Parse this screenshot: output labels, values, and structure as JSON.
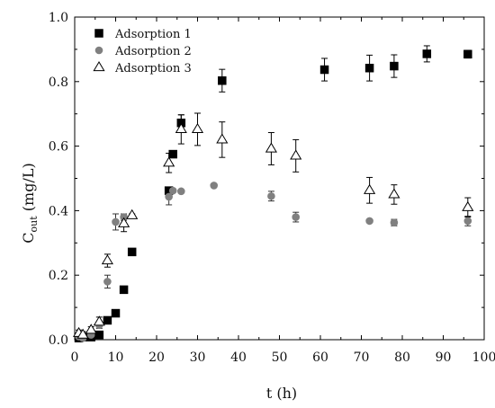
{
  "chart_data": {
    "type": "scatter",
    "xlabel": "t (h)",
    "ylabel_main": "C",
    "ylabel_sub": "out",
    "ylabel_unit": " (mg/L)",
    "xlim": [
      0,
      100
    ],
    "ylim": [
      0,
      1.0
    ],
    "xticks": [
      0,
      10,
      20,
      30,
      40,
      50,
      60,
      70,
      80,
      90,
      100
    ],
    "yticks": [
      0.0,
      0.2,
      0.4,
      0.6,
      0.8,
      1.0
    ],
    "ytick_labels": [
      "0.0",
      "0.2",
      "0.4",
      "0.6",
      "0.8",
      "1.0"
    ],
    "grid": false,
    "legend_position": "top-left",
    "series": [
      {
        "name": "Adsorption 1",
        "marker": "square",
        "color": "#000000",
        "points": [
          {
            "x": 1,
            "y": 0.005,
            "err": 0
          },
          {
            "x": 2,
            "y": 0.008,
            "err": 0
          },
          {
            "x": 4,
            "y": 0.008,
            "err": 0
          },
          {
            "x": 6,
            "y": 0.015,
            "err": 0
          },
          {
            "x": 8,
            "y": 0.06,
            "err": 0
          },
          {
            "x": 10,
            "y": 0.082,
            "err": 0
          },
          {
            "x": 12,
            "y": 0.155,
            "err": 0
          },
          {
            "x": 14,
            "y": 0.272,
            "err": 0
          },
          {
            "x": 23,
            "y": 0.462,
            "err": 0.01
          },
          {
            "x": 24,
            "y": 0.575,
            "err": 0
          },
          {
            "x": 26,
            "y": 0.672,
            "err": 0.025
          },
          {
            "x": 36,
            "y": 0.803,
            "err": 0.035
          },
          {
            "x": 61,
            "y": 0.837,
            "err": 0.035
          },
          {
            "x": 72,
            "y": 0.842,
            "err": 0.04
          },
          {
            "x": 78,
            "y": 0.848,
            "err": 0.035
          },
          {
            "x": 86,
            "y": 0.886,
            "err": 0.025
          },
          {
            "x": 96,
            "y": 0.885,
            "err": 0.012
          }
        ]
      },
      {
        "name": "Adsorption 2",
        "marker": "circle",
        "color": "#808080",
        "points": [
          {
            "x": 1,
            "y": 0.01,
            "err": 0.008
          },
          {
            "x": 2,
            "y": 0.005,
            "err": 0
          },
          {
            "x": 4,
            "y": 0.015,
            "err": 0
          },
          {
            "x": 6,
            "y": 0.045,
            "err": 0.01
          },
          {
            "x": 8,
            "y": 0.18,
            "err": 0.02
          },
          {
            "x": 10,
            "y": 0.365,
            "err": 0.025
          },
          {
            "x": 12,
            "y": 0.38,
            "err": 0.01
          },
          {
            "x": 23,
            "y": 0.443,
            "err": 0.025
          },
          {
            "x": 24,
            "y": 0.462,
            "err": 0.005
          },
          {
            "x": 26,
            "y": 0.46,
            "err": 0.005
          },
          {
            "x": 34,
            "y": 0.478,
            "err": 0.005
          },
          {
            "x": 48,
            "y": 0.445,
            "err": 0.015
          },
          {
            "x": 54,
            "y": 0.38,
            "err": 0.015
          },
          {
            "x": 72,
            "y": 0.368,
            "err": 0.005
          },
          {
            "x": 78,
            "y": 0.363,
            "err": 0.01
          },
          {
            "x": 96,
            "y": 0.368,
            "err": 0.015
          }
        ]
      },
      {
        "name": "Adsorption 3",
        "marker": "triangle",
        "color": "#000000",
        "points": [
          {
            "x": 1,
            "y": 0.02,
            "err": 0.01
          },
          {
            "x": 2,
            "y": 0.015,
            "err": 0.01
          },
          {
            "x": 4,
            "y": 0.03,
            "err": 0.01
          },
          {
            "x": 6,
            "y": 0.055,
            "err": 0.015
          },
          {
            "x": 8,
            "y": 0.245,
            "err": 0.02
          },
          {
            "x": 12,
            "y": 0.36,
            "err": 0.025
          },
          {
            "x": 14,
            "y": 0.385,
            "err": 0.005
          },
          {
            "x": 23,
            "y": 0.548,
            "err": 0.03
          },
          {
            "x": 26,
            "y": 0.652,
            "err": 0.045
          },
          {
            "x": 30,
            "y": 0.652,
            "err": 0.05
          },
          {
            "x": 36,
            "y": 0.62,
            "err": 0.055
          },
          {
            "x": 48,
            "y": 0.592,
            "err": 0.05
          },
          {
            "x": 54,
            "y": 0.57,
            "err": 0.05
          },
          {
            "x": 72,
            "y": 0.463,
            "err": 0.04
          },
          {
            "x": 78,
            "y": 0.45,
            "err": 0.03
          },
          {
            "x": 96,
            "y": 0.41,
            "err": 0.03
          }
        ]
      }
    ]
  }
}
